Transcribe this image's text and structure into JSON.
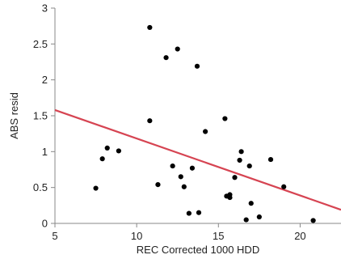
{
  "chart_data": {
    "type": "scatter",
    "title": "",
    "xlabel": "REC Corrected 1000 HDD",
    "ylabel": "ABS resid",
    "xlim": [
      5,
      22.5
    ],
    "ylim": [
      0,
      3
    ],
    "xticks": [
      5,
      10,
      15,
      20
    ],
    "yticks": [
      0,
      0.5,
      1,
      1.5,
      2,
      2.5,
      3
    ],
    "xtick_labels": [
      "5",
      "10",
      "15",
      "20"
    ],
    "ytick_labels": [
      "0",
      "0.5",
      "1",
      "1.5",
      "2",
      "2.5",
      "3"
    ],
    "grid": false,
    "point_color": "#000000",
    "line_color": "#d64452",
    "series": [
      {
        "points": [
          {
            "x": 7.5,
            "y": 0.49
          },
          {
            "x": 7.9,
            "y": 0.9
          },
          {
            "x": 8.2,
            "y": 1.05
          },
          {
            "x": 8.9,
            "y": 1.01
          },
          {
            "x": 10.8,
            "y": 2.73
          },
          {
            "x": 10.8,
            "y": 1.43
          },
          {
            "x": 11.3,
            "y": 0.54
          },
          {
            "x": 11.8,
            "y": 2.31
          },
          {
            "x": 12.2,
            "y": 0.8
          },
          {
            "x": 12.5,
            "y": 2.43
          },
          {
            "x": 12.7,
            "y": 0.65
          },
          {
            "x": 12.9,
            "y": 0.51
          },
          {
            "x": 13.2,
            "y": 0.14
          },
          {
            "x": 13.4,
            "y": 0.77
          },
          {
            "x": 13.7,
            "y": 2.19
          },
          {
            "x": 13.8,
            "y": 0.15
          },
          {
            "x": 14.2,
            "y": 1.28
          },
          {
            "x": 15.4,
            "y": 1.46
          },
          {
            "x": 15.5,
            "y": 0.38
          },
          {
            "x": 15.7,
            "y": 0.4
          },
          {
            "x": 15.7,
            "y": 0.36
          },
          {
            "x": 16.0,
            "y": 0.64
          },
          {
            "x": 16.3,
            "y": 0.88
          },
          {
            "x": 16.4,
            "y": 1.0
          },
          {
            "x": 16.7,
            "y": 0.05
          },
          {
            "x": 16.9,
            "y": 0.8
          },
          {
            "x": 17.0,
            "y": 0.28
          },
          {
            "x": 17.5,
            "y": 0.09
          },
          {
            "x": 18.2,
            "y": 0.89
          },
          {
            "x": 19.0,
            "y": 0.51
          },
          {
            "x": 20.8,
            "y": 0.04
          }
        ]
      }
    ],
    "fit_line": {
      "x": [
        5,
        22.5
      ],
      "y": [
        1.58,
        0.19
      ]
    }
  }
}
